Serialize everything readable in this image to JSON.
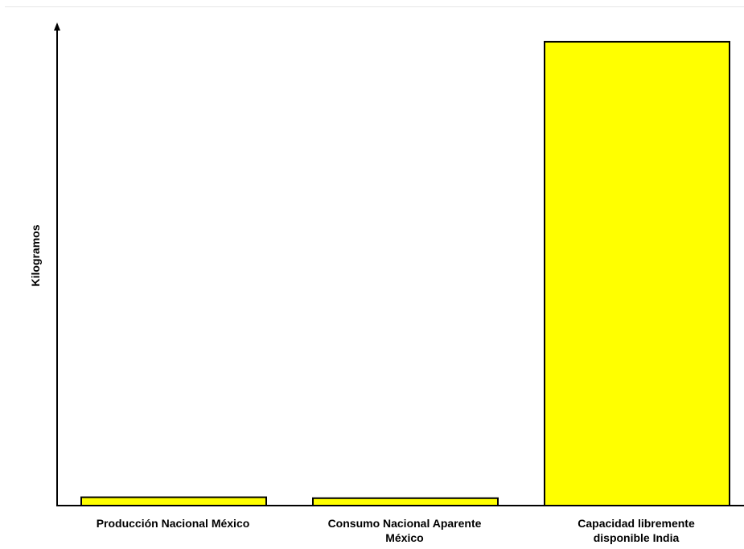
{
  "chart_data": {
    "type": "bar",
    "title": "",
    "xlabel": "",
    "ylabel": "Kilogramos",
    "categories": [
      "Producción Nacional México",
      "Consumo Nacional Aparente México",
      "Capacidad libremente disponible India"
    ],
    "values": [
      1.8,
      1.6,
      100
    ],
    "ylim": [
      0,
      109
    ],
    "y_tick_labels": false,
    "grid": false,
    "legend": "none",
    "colors": {
      "bar_fill": "#ffff00",
      "bar_stroke": "#000000",
      "axis": "#000000"
    }
  }
}
